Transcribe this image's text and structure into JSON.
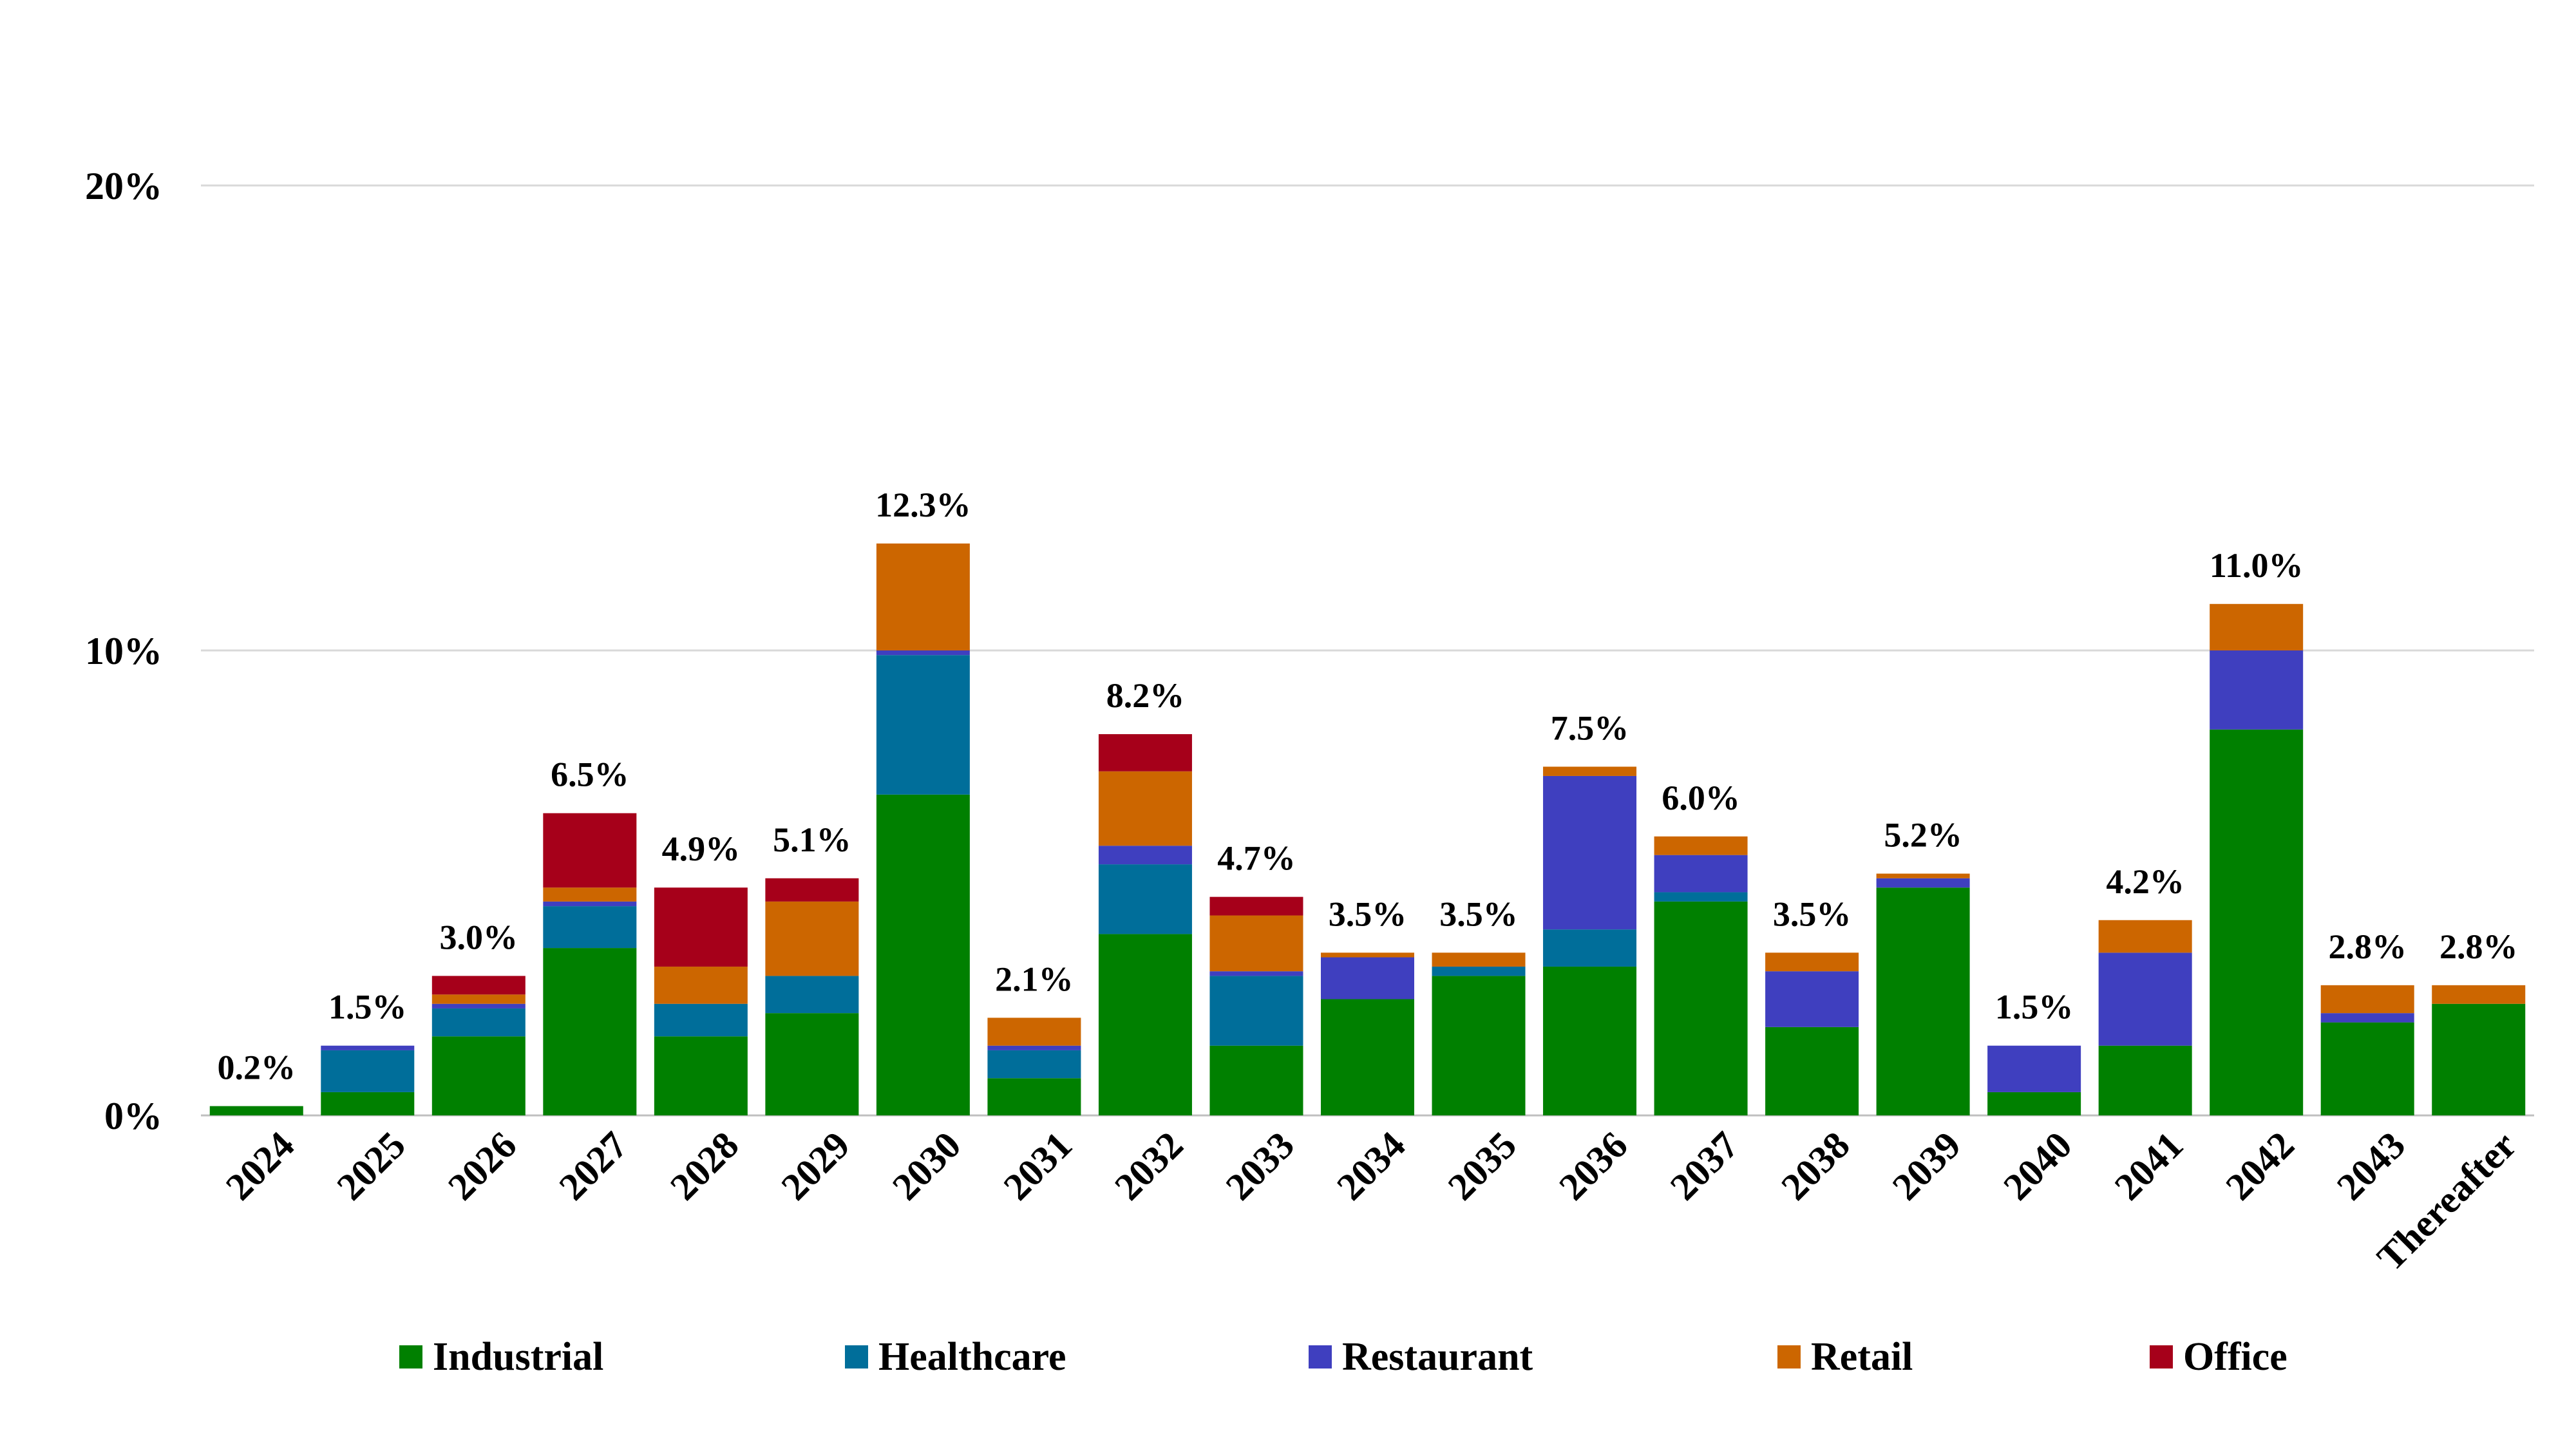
{
  "chart_data": {
    "type": "bar",
    "stacked": true,
    "categories": [
      "2024",
      "2025",
      "2026",
      "2027",
      "2028",
      "2029",
      "2030",
      "2031",
      "2032",
      "2033",
      "2034",
      "2035",
      "2036",
      "2037",
      "2038",
      "2039",
      "2040",
      "2041",
      "2042",
      "2043",
      "Thereafter"
    ],
    "series": [
      {
        "name": "Industrial",
        "color": "#008000",
        "values": [
          0.2,
          0.5,
          1.7,
          3.6,
          1.7,
          2.2,
          6.9,
          0.8,
          3.9,
          1.5,
          2.5,
          3.0,
          3.2,
          4.6,
          1.9,
          4.9,
          0.5,
          1.5,
          8.3,
          2.0,
          2.4
        ]
      },
      {
        "name": "Healthcare",
        "color": "#006E9A",
        "values": [
          0,
          0.9,
          0.6,
          0.9,
          0.7,
          0.8,
          3.0,
          0.6,
          1.5,
          1.5,
          0,
          0.2,
          0.8,
          0.2,
          0,
          0,
          0,
          0,
          0,
          0,
          0
        ]
      },
      {
        "name": "Restaurant",
        "color": "#3F3FBF",
        "values": [
          0,
          0.1,
          0.1,
          0.1,
          0,
          0,
          0.1,
          0.1,
          0.4,
          0.1,
          0.9,
          0,
          3.3,
          0.8,
          1.2,
          0.2,
          1.0,
          2.0,
          1.7,
          0.2,
          0
        ]
      },
      {
        "name": "Retail",
        "color": "#CC6600",
        "values": [
          0,
          0,
          0.2,
          0.3,
          0.8,
          1.6,
          2.3,
          0.6,
          1.6,
          1.2,
          0.1,
          0.3,
          0.2,
          0.4,
          0.4,
          0.1,
          0,
          0.7,
          1.0,
          0.6,
          0.4
        ]
      },
      {
        "name": "Office",
        "color": "#A6001A",
        "values": [
          0,
          0,
          0.4,
          1.6,
          1.7,
          0.5,
          0,
          0,
          0.8,
          0.4,
          0,
          0,
          0,
          0,
          0,
          0,
          0,
          0,
          0,
          0,
          0
        ]
      }
    ],
    "totals": [
      "0.2%",
      "1.5%",
      "3.0%",
      "6.5%",
      "4.9%",
      "5.1%",
      "12.3%",
      "2.1%",
      "8.2%",
      "4.7%",
      "3.5%",
      "3.5%",
      "7.5%",
      "6.0%",
      "3.5%",
      "5.2%",
      "1.5%",
      "4.2%",
      "11.0%",
      "2.8%",
      "2.8%"
    ],
    "y_ticks": [
      {
        "value": 0,
        "label": "0%"
      },
      {
        "value": 10,
        "label": "10%"
      },
      {
        "value": 20,
        "label": "20%"
      }
    ],
    "ylim": [
      0,
      20
    ],
    "grid": true,
    "legend_position": "bottom",
    "title": "",
    "xlabel": "",
    "ylabel": ""
  },
  "colors": {
    "gridline": "#D9D9D9",
    "axis": "#BFBFBF"
  }
}
